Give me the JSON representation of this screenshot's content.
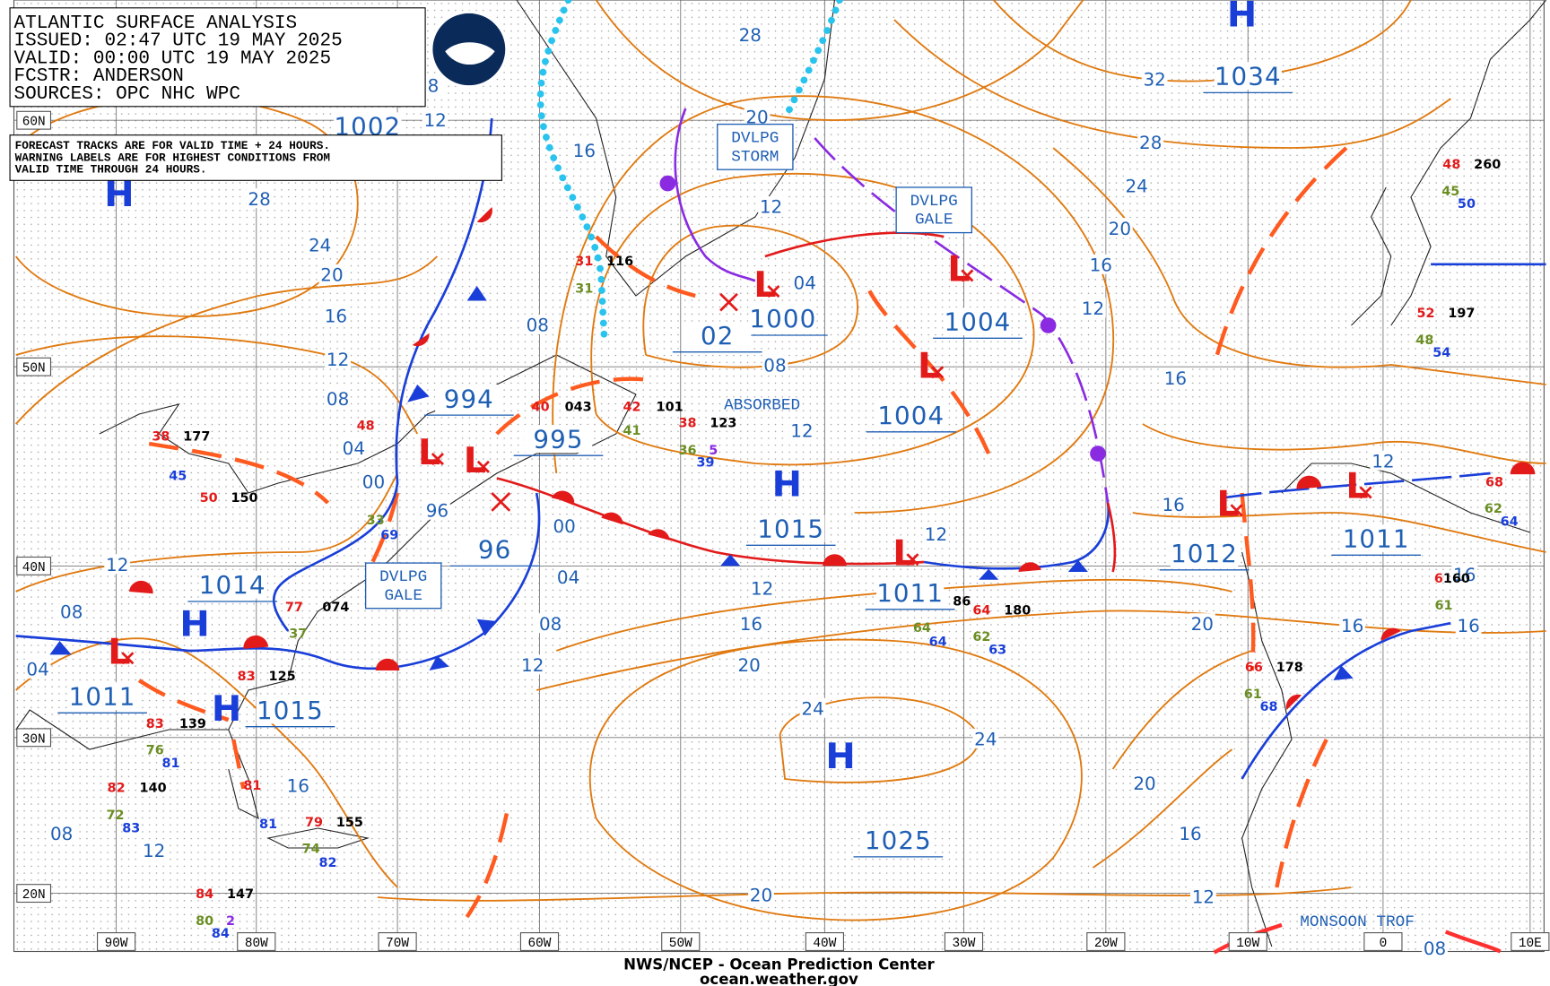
{
  "header": {
    "lines": [
      "ATLANTIC SURFACE ANALYSIS",
      "ISSUED: 02:47 UTC 19 MAY 2025",
      "VALID:  00:00 UTC 19 MAY 2025",
      "FCSTR:  ANDERSON",
      "SOURCES: OPC NHC WPC"
    ]
  },
  "note": {
    "lines": [
      "FORECAST TRACKS ARE FOR VALID TIME + 24 HOURS.",
      "WARNING LABELS ARE FOR HIGHEST CONDITIONS FROM",
      "VALID TIME THROUGH 24 HOURS."
    ]
  },
  "latitudes": [
    "60N",
    "50N",
    "40N",
    "30N",
    "20N"
  ],
  "longitudes": [
    "90W",
    "80W",
    "70W",
    "60W",
    "50W",
    "40W",
    "30W",
    "20W",
    "10W",
    "0",
    "10E"
  ],
  "pressure_values": [
    "1002",
    "994",
    "995",
    "96",
    "1014",
    "1011",
    "1015",
    "1000",
    "02",
    "1004",
    "1004",
    "1015",
    "1011",
    "1025",
    "1012",
    "1011",
    "1034"
  ],
  "center_symbols": [
    "H",
    "H",
    "H",
    "H",
    "H",
    "H",
    "L",
    "L",
    "L",
    "L",
    "L",
    "L",
    "L",
    "L",
    "L"
  ],
  "isobar_labels": [
    "8",
    "12",
    "28",
    "20",
    "16",
    "12",
    "04",
    "08",
    "08",
    "12",
    "28",
    "24",
    "20",
    "16",
    "12",
    "08",
    "04",
    "00",
    "96",
    "00",
    "04",
    "08",
    "12",
    "12",
    "16",
    "20",
    "24",
    "24",
    "20",
    "12",
    "32",
    "28",
    "24",
    "20",
    "16",
    "12",
    "16",
    "16",
    "12",
    "20",
    "16",
    "16",
    "16",
    "20",
    "16",
    "12",
    "08",
    "12",
    "08",
    "04",
    "16",
    "08",
    "12"
  ],
  "boxed_labels": [
    [
      "DVLPG",
      "STORM"
    ],
    [
      "DVLPG",
      "GALE"
    ],
    [
      "DVLPG",
      "GALE"
    ]
  ],
  "labels": [
    "ABSORBED",
    "MONSOON TROF"
  ],
  "stations": [
    "48",
    "260",
    "45",
    "50",
    "52",
    "197",
    "48",
    "54",
    "68",
    "62",
    "64",
    "6",
    "160",
    "61",
    "66",
    "178",
    "61",
    "68",
    "86",
    "64",
    "180",
    "64",
    "62",
    "64",
    "63",
    "38",
    "123",
    "36",
    "5",
    "39",
    "101",
    "043",
    "42",
    "41",
    "40",
    "48",
    "38",
    "177",
    "45",
    "50",
    "150",
    "83",
    "125",
    "77",
    "074",
    "37",
    "83",
    "139",
    "76",
    "81",
    "82",
    "140",
    "72",
    "83",
    "81",
    "81",
    "79",
    "155",
    "74",
    "82",
    "84",
    "147",
    "80",
    "2",
    "84",
    "31",
    "116",
    "31",
    "33",
    "69"
  ],
  "footer": [
    "NWS/NCEP - Ocean Prediction Center",
    "ocean.weather.gov"
  ]
}
